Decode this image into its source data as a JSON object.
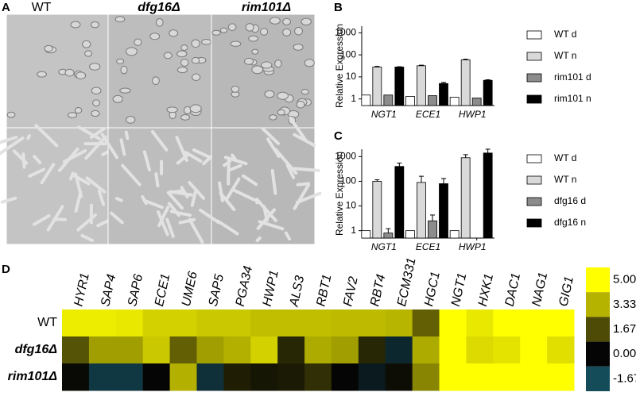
{
  "panel_labels": [
    "A",
    "B",
    "C",
    "D"
  ],
  "micrographs": {
    "columns": [
      "WT",
      "dfg16Δ",
      "rim101Δ"
    ]
  },
  "chart_data": [
    {
      "type": "bar",
      "y_label": "Relative Expression",
      "log_scale": true,
      "categories": [
        "NGT1",
        "ECE1",
        "HWP1"
      ],
      "series": [
        {
          "name": "WT d",
          "color": "#ffffff",
          "values": [
            1.5,
            1.3,
            1.2
          ]
        },
        {
          "name": "WT n",
          "color": "#d9d9d9",
          "values": [
            28,
            32,
            60
          ],
          "errors": [
            2,
            2,
            4
          ]
        },
        {
          "name": "rim101 d",
          "color": "#8c8c8c",
          "values": [
            1.5,
            1.4,
            1.1
          ]
        },
        {
          "name": "rim101 n",
          "color": "#000000",
          "values": [
            28,
            5,
            7
          ],
          "errors": [
            1,
            0.6,
            0.4
          ]
        }
      ],
      "ylim": [
        0.5,
        2000
      ],
      "yticks": [
        1,
        10,
        100,
        1000
      ]
    },
    {
      "type": "bar",
      "y_label": "Relative Expression",
      "log_scale": true,
      "categories": [
        "NGT1",
        "ECE1",
        "HWP1"
      ],
      "series": [
        {
          "name": "WT d",
          "color": "#ffffff",
          "values": [
            1,
            1,
            1
          ]
        },
        {
          "name": "WT n",
          "color": "#d9d9d9",
          "values": [
            100,
            90,
            900
          ],
          "errors": [
            15,
            70,
            300
          ]
        },
        {
          "name": "dfg16 d",
          "color": "#8c8c8c",
          "values": [
            0.8,
            2.5,
            0.4
          ],
          "errors": [
            0.4,
            1.8,
            0.1
          ]
        },
        {
          "name": "dfg16 n",
          "color": "#000000",
          "values": [
            400,
            80,
            1400
          ],
          "errors": [
            150,
            50,
            600
          ]
        }
      ],
      "ylim": [
        0.5,
        2000
      ],
      "yticks": [
        1,
        10,
        100,
        1000
      ]
    },
    {
      "type": "heatmap",
      "columns": [
        "HYR1",
        "SAP4",
        "SAP6",
        "ECE1",
        "UME6",
        "SAP5",
        "PGA34",
        "HWP1",
        "ALS3",
        "RBT1",
        "FAV2",
        "RBT4",
        "ECM331",
        "HGC1",
        "NGT1",
        "HXK1",
        "DAC1",
        "NAG1",
        "GIG1"
      ],
      "rows": [
        "WT",
        "dfg16Δ",
        "rim101Δ"
      ],
      "values": [
        [
          4.6,
          4.6,
          4.5,
          4.0,
          4.0,
          3.8,
          3.8,
          3.6,
          3.6,
          3.6,
          3.5,
          3.5,
          3.4,
          2.0,
          5,
          4.5,
          5,
          5,
          5
        ],
        [
          1.8,
          3.0,
          3.0,
          3.8,
          2.0,
          3.0,
          3.3,
          4.0,
          0.8,
          3.2,
          3.0,
          0.8,
          -0.8,
          3.2,
          5,
          4.2,
          4.4,
          5,
          4.3
        ],
        [
          0.1,
          -1.2,
          -1.2,
          0.0,
          3.3,
          -1.0,
          0.6,
          0.4,
          0.5,
          1.0,
          0.0,
          -0.5,
          0.2,
          2.6,
          5,
          5,
          5,
          5,
          5
        ]
      ],
      "colorbar_ticks": [
        {
          "value": 5,
          "label": "5.00"
        },
        {
          "value": 3.33,
          "label": "3.33"
        },
        {
          "value": 1.67,
          "label": "1.67"
        },
        {
          "value": 0,
          "label": "0.00"
        },
        {
          "value": -1.67,
          "label": "-1.67"
        }
      ],
      "colors": [
        "#ffff00",
        "#b5b200",
        "#4d4b05",
        "#050505",
        "#154c5a"
      ]
    }
  ]
}
